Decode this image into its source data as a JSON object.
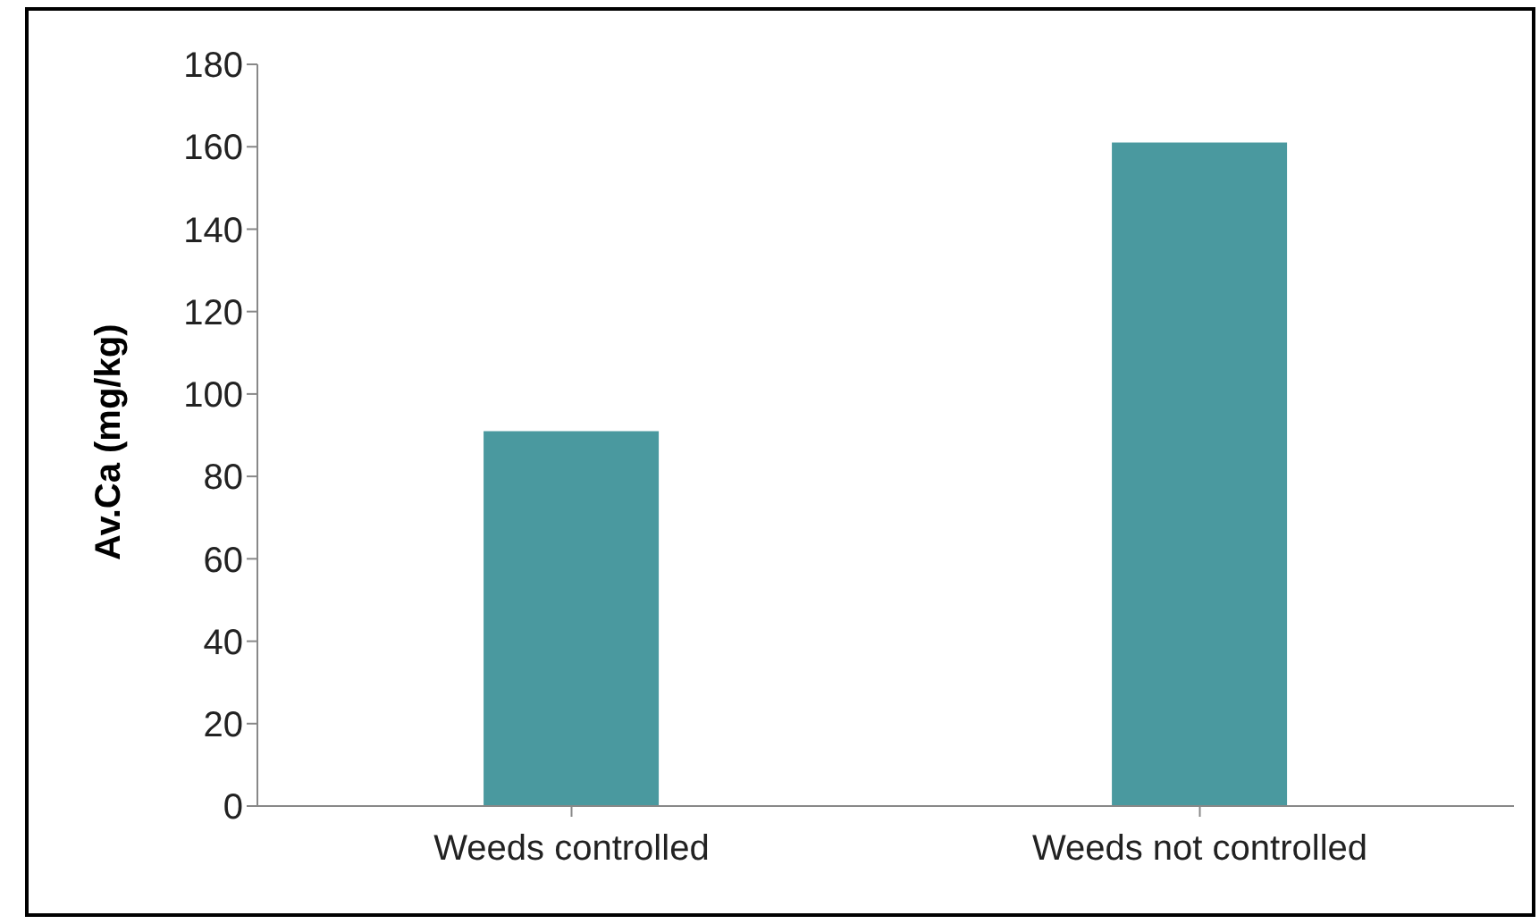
{
  "chart_data": {
    "type": "bar",
    "ylabel": "Av.Ca (mg/kg)",
    "categories": [
      "Weeds controlled",
      "Weeds not controlled"
    ],
    "values": [
      91,
      161
    ],
    "color": "#4a999f",
    "ylim": [
      0,
      180
    ],
    "yticks": [
      0,
      20,
      40,
      60,
      80,
      100,
      120,
      140,
      160,
      180
    ],
    "grid": false,
    "legend": false
  }
}
